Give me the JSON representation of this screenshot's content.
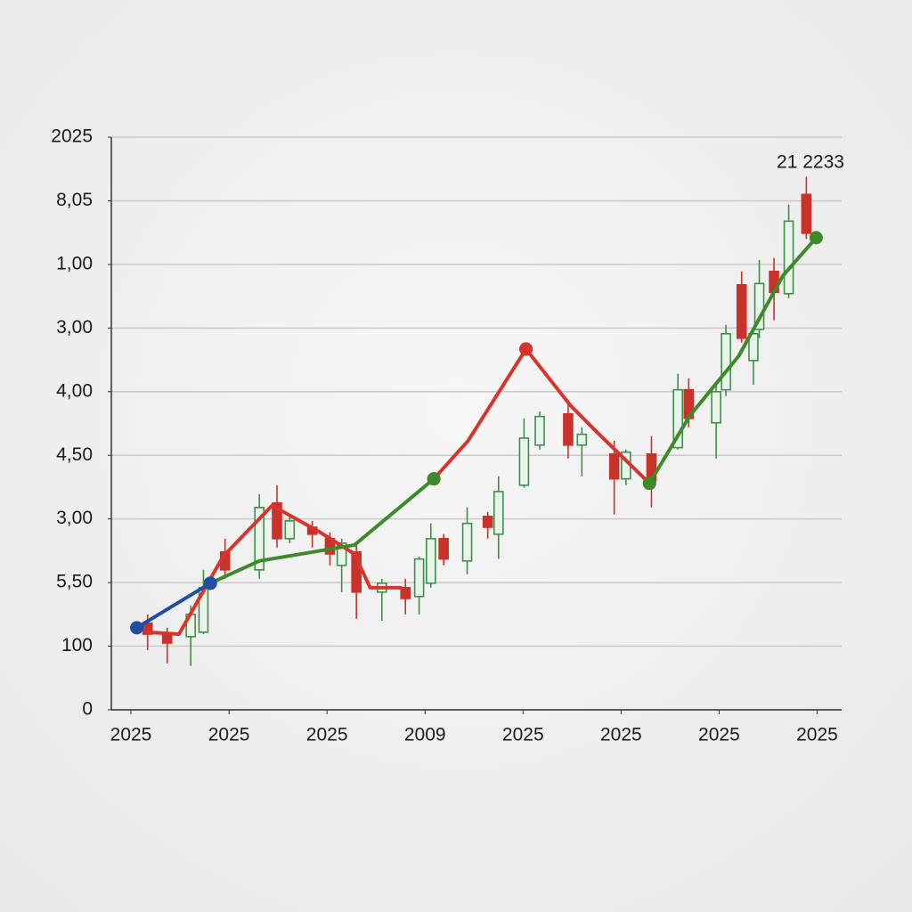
{
  "chart_data": {
    "type": "candlestick",
    "annotations": [
      "21 2233"
    ],
    "xlim": [
      -0.2,
      7.25
    ],
    "xticks": [
      {
        "value": 0,
        "label": "2025"
      },
      {
        "value": 1,
        "label": "2025"
      },
      {
        "value": 2,
        "label": "2025"
      },
      {
        "value": 3,
        "label": "2009"
      },
      {
        "value": 4,
        "label": "2025"
      },
      {
        "value": 5,
        "label": "2025"
      },
      {
        "value": 6,
        "label": "2025"
      },
      {
        "value": 7,
        "label": "2025"
      }
    ],
    "ylim": [
      0,
      9
    ],
    "yticks": [
      0,
      {
        "value": 1,
        "label": "100"
      },
      {
        "value": 2,
        "label": "5,50"
      },
      {
        "value": 3,
        "label": "3,00"
      },
      {
        "value": 4,
        "label": "4,50"
      },
      {
        "value": 5,
        "label": "4,00"
      },
      {
        "value": 6,
        "label": "3,00"
      },
      {
        "value": 7,
        "label": "1,00"
      },
      {
        "value": 8,
        "label": "8,05"
      },
      {
        "value": 9,
        "label": "2025"
      }
    ],
    "grid": true,
    "up_color": "#3f8f4a",
    "down_color": "#c8322a",
    "candles": [
      {
        "x": 0.17,
        "open": 1.36,
        "high": 1.5,
        "low": 0.94,
        "close": 1.19
      },
      {
        "x": 0.37,
        "open": 1.19,
        "high": 1.29,
        "low": 0.73,
        "close": 1.05
      },
      {
        "x": 0.61,
        "open": 1.15,
        "high": 1.64,
        "low": 0.69,
        "close": 1.5
      },
      {
        "x": 0.74,
        "open": 1.22,
        "high": 2.2,
        "low": 1.19,
        "close": 1.92
      },
      {
        "x": 0.96,
        "open": 2.48,
        "high": 2.69,
        "low": 2.06,
        "close": 2.2
      },
      {
        "x": 1.31,
        "open": 2.2,
        "high": 3.39,
        "low": 2.06,
        "close": 3.18
      },
      {
        "x": 1.49,
        "open": 3.25,
        "high": 3.53,
        "low": 2.55,
        "close": 2.69
      },
      {
        "x": 1.62,
        "open": 2.69,
        "high": 3.04,
        "low": 2.62,
        "close": 2.97
      },
      {
        "x": 1.85,
        "open": 2.87,
        "high": 2.97,
        "low": 2.55,
        "close": 2.76
      },
      {
        "x": 2.03,
        "open": 2.69,
        "high": 2.79,
        "low": 2.27,
        "close": 2.45
      },
      {
        "x": 2.15,
        "open": 2.27,
        "high": 2.69,
        "low": 1.85,
        "close": 2.62
      },
      {
        "x": 2.3,
        "open": 2.48,
        "high": 2.59,
        "low": 1.43,
        "close": 1.85
      },
      {
        "x": 2.56,
        "open": 1.85,
        "high": 2.06,
        "low": 1.4,
        "close": 1.99
      },
      {
        "x": 2.8,
        "open": 1.92,
        "high": 2.06,
        "low": 1.5,
        "close": 1.75
      },
      {
        "x": 2.94,
        "open": 1.78,
        "high": 2.41,
        "low": 1.5,
        "close": 2.37
      },
      {
        "x": 3.06,
        "open": 1.99,
        "high": 2.93,
        "low": 1.92,
        "close": 2.69
      },
      {
        "x": 3.19,
        "open": 2.69,
        "high": 2.76,
        "low": 2.27,
        "close": 2.37
      },
      {
        "x": 3.43,
        "open": 2.34,
        "high": 3.18,
        "low": 2.13,
        "close": 2.93
      },
      {
        "x": 3.64,
        "open": 3.04,
        "high": 3.11,
        "low": 2.69,
        "close": 2.87
      },
      {
        "x": 3.75,
        "open": 2.76,
        "high": 3.67,
        "low": 2.37,
        "close": 3.43
      },
      {
        "x": 4.01,
        "open": 3.53,
        "high": 4.58,
        "low": 3.49,
        "close": 4.27
      },
      {
        "x": 4.17,
        "open": 4.16,
        "high": 4.69,
        "low": 4.09,
        "close": 4.61
      },
      {
        "x": 4.46,
        "open": 4.65,
        "high": 4.79,
        "low": 3.95,
        "close": 4.16
      },
      {
        "x": 4.6,
        "open": 4.16,
        "high": 4.44,
        "low": 3.67,
        "close": 4.33
      },
      {
        "x": 4.93,
        "open": 4.02,
        "high": 4.23,
        "low": 3.07,
        "close": 3.63
      },
      {
        "x": 5.05,
        "open": 3.63,
        "high": 4.09,
        "low": 3.53,
        "close": 4.05
      },
      {
        "x": 5.31,
        "open": 4.02,
        "high": 4.3,
        "low": 3.18,
        "close": 3.6
      },
      {
        "x": 5.58,
        "open": 4.12,
        "high": 5.28,
        "low": 4.09,
        "close": 5.03
      },
      {
        "x": 5.69,
        "open": 5.03,
        "high": 5.21,
        "low": 4.44,
        "close": 4.58
      },
      {
        "x": 5.97,
        "open": 4.51,
        "high": 5.14,
        "low": 3.95,
        "close": 5.0
      },
      {
        "x": 6.07,
        "open": 5.03,
        "high": 6.05,
        "low": 4.93,
        "close": 5.91
      },
      {
        "x": 6.23,
        "open": 6.68,
        "high": 6.89,
        "low": 5.77,
        "close": 5.84
      },
      {
        "x": 6.35,
        "open": 5.49,
        "high": 5.98,
        "low": 5.11,
        "close": 5.91
      },
      {
        "x": 6.41,
        "open": 5.98,
        "high": 7.07,
        "low": 5.84,
        "close": 6.7
      },
      {
        "x": 6.56,
        "open": 6.89,
        "high": 7.1,
        "low": 6.12,
        "close": 6.56
      },
      {
        "x": 6.71,
        "open": 6.54,
        "high": 7.94,
        "low": 6.47,
        "close": 7.68
      },
      {
        "x": 6.89,
        "open": 8.1,
        "high": 8.38,
        "low": 7.4,
        "close": 7.49
      }
    ],
    "series": [
      {
        "color": "#d9342b",
        "markers": false,
        "x": [
          0.17,
          0.49,
          0.94,
          1.44,
          1.93,
          2.28,
          2.44,
          2.75
        ],
        "values": [
          1.22,
          1.19,
          2.41,
          3.21,
          2.79,
          2.45,
          1.92,
          1.92
        ]
      },
      {
        "color": "#d9342b",
        "markers": true,
        "x": [
          3.09,
          3.44,
          4.03,
          null,
          4.03,
          4.48,
          4.75,
          5.29
        ],
        "values": [
          3.63,
          4.23,
          5.67,
          null,
          5.67,
          4.79,
          4.37,
          3.56
        ]
      },
      {
        "color": "#3d8a2a",
        "markers": true,
        "x": [
          0.81,
          1.31,
          2.28,
          3.09,
          null,
          5.29,
          5.7,
          6.2,
          6.65,
          6.99
        ],
        "values": [
          1.99,
          2.34,
          2.59,
          3.63,
          null,
          3.56,
          4.62,
          5.56,
          6.82,
          7.42
        ]
      },
      {
        "color": "#1f4ea3",
        "markers": true,
        "x": [
          0.06,
          0.81
        ],
        "values": [
          1.29,
          1.99
        ]
      }
    ]
  }
}
